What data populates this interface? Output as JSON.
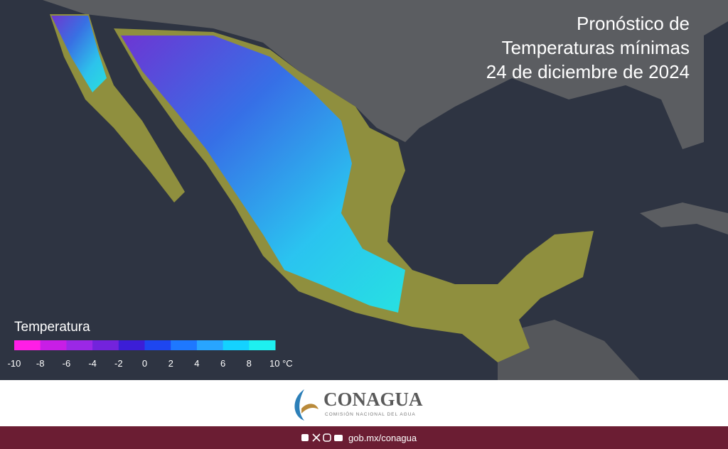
{
  "header": {
    "title_lines": [
      "Pronóstico de",
      "Temperaturas mínimas",
      "24 de diciembre de 2024"
    ]
  },
  "legend": {
    "title": "Temperatura",
    "colors": [
      "#ff1ee6",
      "#c81ee6",
      "#9b28e6",
      "#7323dc",
      "#3c1ed7",
      "#1e46f0",
      "#1e78ff",
      "#28a5ff",
      "#14d2ff",
      "#1ef0f0"
    ],
    "ticks": [
      -10,
      -8,
      -6,
      -4,
      -2,
      0,
      2,
      4,
      6,
      8,
      {
        "value": 10,
        "label": "10 °C"
      }
    ]
  },
  "logo": {
    "name": "CONAGUA",
    "subtitle": "COMISIÓN NACIONAL DEL AGUA"
  },
  "footer": {
    "url": "gob.mx/conagua"
  }
}
